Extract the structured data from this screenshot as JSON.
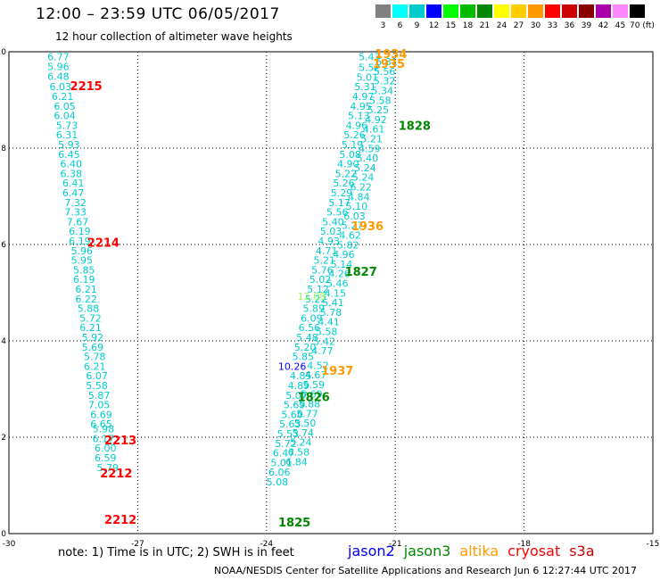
{
  "header": {
    "title": "12:00 – 23:59 UTC 06/05/2017",
    "subtitle": "12 hour collection of altimeter wave heights"
  },
  "colorbar": {
    "labels": [
      "3",
      "6",
      "9",
      "12",
      "15",
      "18",
      "21",
      "24",
      "27",
      "30",
      "33",
      "36",
      "39",
      "42",
      "45",
      "70 (ft)"
    ],
    "colors": [
      "#808080",
      "#00ffff",
      "#00cccc",
      "#0000ff",
      "#00ff00",
      "#00bb00",
      "#008800",
      "#ffff00",
      "#ffcc00",
      "#ff9900",
      "#ff0000",
      "#cc0000",
      "#880000",
      "#aa00aa",
      "#ff88ff",
      "#000000"
    ]
  },
  "note": "note:  1) Time is in UTC;  2) SWH is in feet",
  "satellites": [
    {
      "name": "jason2",
      "color": "#0000ff"
    },
    {
      "name": "jason3",
      "color": "#008800"
    },
    {
      "name": "altika",
      "color": "#ff9900"
    },
    {
      "name": "cryosat",
      "color": "#ff0000"
    },
    {
      "name": "s3a",
      "color": "#cc0000"
    }
  ],
  "footer": "NOAA/NESDIS Center for Satellite Applications and Research    Jun  6 12:27:44 UTC 2017",
  "chart_data": {
    "type": "scatter",
    "xlim": [
      -30,
      -15
    ],
    "ylim": [
      0,
      10
    ],
    "x_ticks": [
      "-30",
      "-27",
      "-24",
      "-21",
      "-18",
      "-15"
    ],
    "y_ticks": [
      "0",
      "2",
      "4",
      "6",
      "8",
      "10"
    ],
    "grid": true,
    "series": [
      {
        "name": "left track",
        "color": "#00cccc",
        "points": [
          {
            "x": -28.85,
            "y": 9.82,
            "label": "6.77"
          },
          {
            "x": -28.85,
            "y": 9.62,
            "label": "5.96"
          },
          {
            "x": -28.85,
            "y": 9.42,
            "label": "6.48"
          },
          {
            "x": -28.8,
            "y": 9.2,
            "label": "6.03"
          },
          {
            "x": -28.75,
            "y": 9.0,
            "label": "6.21"
          },
          {
            "x": -28.7,
            "y": 8.8,
            "label": "6.05"
          },
          {
            "x": -28.7,
            "y": 8.6,
            "label": "6.04"
          },
          {
            "x": -28.65,
            "y": 8.4,
            "label": "5.73"
          },
          {
            "x": -28.65,
            "y": 8.2,
            "label": "6.31"
          },
          {
            "x": -28.6,
            "y": 8.0,
            "label": "5.93"
          },
          {
            "x": -28.6,
            "y": 7.8,
            "label": "6.45"
          },
          {
            "x": -28.55,
            "y": 7.6,
            "label": "6.40"
          },
          {
            "x": -28.55,
            "y": 7.4,
            "label": "6.38"
          },
          {
            "x": -28.5,
            "y": 7.2,
            "label": "6.41"
          },
          {
            "x": -28.5,
            "y": 7.0,
            "label": "6.47"
          },
          {
            "x": -28.45,
            "y": 6.8,
            "label": "7.32"
          },
          {
            "x": -28.45,
            "y": 6.6,
            "label": "7.33"
          },
          {
            "x": -28.4,
            "y": 6.4,
            "label": "7.67"
          },
          {
            "x": -28.35,
            "y": 6.2,
            "label": "6.19"
          },
          {
            "x": -28.35,
            "y": 6.0,
            "label": "6.19"
          },
          {
            "x": -28.3,
            "y": 5.8,
            "label": "5.96"
          },
          {
            "x": -28.3,
            "y": 5.6,
            "label": "5.95"
          },
          {
            "x": -28.25,
            "y": 5.4,
            "label": "5.85"
          },
          {
            "x": -28.25,
            "y": 5.2,
            "label": "6.19"
          },
          {
            "x": -28.2,
            "y": 5.0,
            "label": "6.21"
          },
          {
            "x": -28.2,
            "y": 4.8,
            "label": "6.22"
          },
          {
            "x": -28.15,
            "y": 4.6,
            "label": "5.88"
          },
          {
            "x": -28.1,
            "y": 4.4,
            "label": "5.72"
          },
          {
            "x": -28.1,
            "y": 4.2,
            "label": "6.21"
          },
          {
            "x": -28.05,
            "y": 4.0,
            "label": "5.92"
          },
          {
            "x": -28.05,
            "y": 3.8,
            "label": "5.69"
          },
          {
            "x": -28.0,
            "y": 3.6,
            "label": "5.78"
          },
          {
            "x": -28.0,
            "y": 3.4,
            "label": "6.21"
          },
          {
            "x": -27.95,
            "y": 3.2,
            "label": "6.07"
          },
          {
            "x": -27.95,
            "y": 3.0,
            "label": "5.58"
          },
          {
            "x": -27.9,
            "y": 2.8,
            "label": "5.87"
          },
          {
            "x": -27.9,
            "y": 2.6,
            "label": "7.05"
          },
          {
            "x": -27.85,
            "y": 2.4,
            "label": "6.69"
          },
          {
            "x": -27.85,
            "y": 2.2,
            "label": "6.65"
          },
          {
            "x": -27.8,
            "y": 2.1,
            "label": "5.98"
          },
          {
            "x": -27.8,
            "y": 1.9,
            "label": "6.17"
          },
          {
            "x": -27.75,
            "y": 1.7,
            "label": "6.00"
          },
          {
            "x": -27.75,
            "y": 1.5,
            "label": "6.59"
          },
          {
            "x": -27.7,
            "y": 1.3,
            "label": "5.79"
          }
        ]
      },
      {
        "name": "right track",
        "color": "#00cccc",
        "points": [
          {
            "x": -21.6,
            "y": 9.82,
            "label": "5.43"
          },
          {
            "x": -21.6,
            "y": 9.6,
            "label": "5.52"
          },
          {
            "x": -21.65,
            "y": 9.4,
            "label": "5.01"
          },
          {
            "x": -21.7,
            "y": 9.2,
            "label": "5.31"
          },
          {
            "x": -21.75,
            "y": 9.0,
            "label": "4.97"
          },
          {
            "x": -21.8,
            "y": 8.8,
            "label": "4.95"
          },
          {
            "x": -21.85,
            "y": 8.6,
            "label": "5.13"
          },
          {
            "x": -21.9,
            "y": 8.4,
            "label": "4.96"
          },
          {
            "x": -21.95,
            "y": 8.2,
            "label": "5.26"
          },
          {
            "x": -22.0,
            "y": 8.0,
            "label": "5.19"
          },
          {
            "x": -22.05,
            "y": 7.8,
            "label": "5.08"
          },
          {
            "x": -22.1,
            "y": 7.6,
            "label": "4.90"
          },
          {
            "x": -22.15,
            "y": 7.4,
            "label": "5.22"
          },
          {
            "x": -22.2,
            "y": 7.2,
            "label": "5.26"
          },
          {
            "x": -22.25,
            "y": 7.0,
            "label": "5.29"
          },
          {
            "x": -22.3,
            "y": 6.8,
            "label": "5.17"
          },
          {
            "x": -22.35,
            "y": 6.6,
            "label": "5.56"
          },
          {
            "x": -22.45,
            "y": 6.4,
            "label": "5.40"
          },
          {
            "x": -22.5,
            "y": 6.2,
            "label": "5.03"
          },
          {
            "x": -22.55,
            "y": 6.0,
            "label": "4.93"
          },
          {
            "x": -22.6,
            "y": 5.8,
            "label": "4.71"
          },
          {
            "x": -22.65,
            "y": 5.6,
            "label": "5.21"
          },
          {
            "x": -22.7,
            "y": 5.4,
            "label": "5.76"
          },
          {
            "x": -22.75,
            "y": 5.2,
            "label": "5.02"
          },
          {
            "x": -22.8,
            "y": 5.0,
            "label": "5.12"
          },
          {
            "x": -22.85,
            "y": 4.8,
            "label": "5.22"
          },
          {
            "x": -22.9,
            "y": 4.6,
            "label": "5.89"
          },
          {
            "x": -22.95,
            "y": 4.4,
            "label": "6.09"
          },
          {
            "x": -23.0,
            "y": 4.2,
            "label": "6.56"
          },
          {
            "x": -23.05,
            "y": 4.0,
            "label": "5.48"
          },
          {
            "x": -23.1,
            "y": 3.8,
            "label": "5.20"
          },
          {
            "x": -23.15,
            "y": 3.6,
            "label": "5.85"
          },
          {
            "x": -23.2,
            "y": 3.2,
            "label": "4.85"
          },
          {
            "x": -23.25,
            "y": 3.0,
            "label": "4.89"
          },
          {
            "x": -23.3,
            "y": 2.8,
            "label": "5.07"
          },
          {
            "x": -23.35,
            "y": 2.6,
            "label": "5.69"
          },
          {
            "x": -23.4,
            "y": 2.4,
            "label": "5.60"
          },
          {
            "x": -23.45,
            "y": 2.2,
            "label": "5.63"
          },
          {
            "x": -23.5,
            "y": 2.0,
            "label": "5.53"
          },
          {
            "x": -23.55,
            "y": 1.8,
            "label": "5.72"
          },
          {
            "x": -23.6,
            "y": 1.6,
            "label": "6.47"
          },
          {
            "x": -23.65,
            "y": 1.4,
            "label": "5.01"
          },
          {
            "x": -23.7,
            "y": 1.2,
            "label": "6.06"
          },
          {
            "x": -23.75,
            "y": 1.0,
            "label": "5.08"
          }
        ]
      },
      {
        "name": "right track b",
        "color": "#00cccc",
        "points": [
          {
            "x": -21.2,
            "y": 9.72,
            "label": "5.31"
          },
          {
            "x": -21.25,
            "y": 9.52,
            "label": "5.56"
          },
          {
            "x": -21.25,
            "y": 9.32,
            "label": "5.32"
          },
          {
            "x": -21.3,
            "y": 9.12,
            "label": "5.34"
          },
          {
            "x": -21.35,
            "y": 8.92,
            "label": "5.58"
          },
          {
            "x": -21.4,
            "y": 8.72,
            "label": "5.25"
          },
          {
            "x": -21.45,
            "y": 8.52,
            "label": "4.92"
          },
          {
            "x": -21.5,
            "y": 8.32,
            "label": "4.61"
          },
          {
            "x": -21.55,
            "y": 8.12,
            "label": "5.21"
          },
          {
            "x": -21.6,
            "y": 7.92,
            "label": "4.59"
          },
          {
            "x": -21.65,
            "y": 7.72,
            "label": "5.40"
          },
          {
            "x": -21.7,
            "y": 7.52,
            "label": "5.24"
          },
          {
            "x": -21.75,
            "y": 7.32,
            "label": "5.24"
          },
          {
            "x": -21.8,
            "y": 7.12,
            "label": "6.22"
          },
          {
            "x": -21.85,
            "y": 6.92,
            "label": "4.84"
          },
          {
            "x": -21.9,
            "y": 6.72,
            "label": "5.10"
          },
          {
            "x": -21.95,
            "y": 6.52,
            "label": "6.03"
          },
          {
            "x": -22.0,
            "y": 6.32,
            "label": "5.27"
          },
          {
            "x": -22.05,
            "y": 6.12,
            "label": "4.62"
          },
          {
            "x": -22.1,
            "y": 5.92,
            "label": "5.82"
          },
          {
            "x": -22.2,
            "y": 5.72,
            "label": "4.96"
          },
          {
            "x": -22.25,
            "y": 5.52,
            "label": "5.14"
          },
          {
            "x": -22.3,
            "y": 5.32,
            "label": "4.26"
          },
          {
            "x": -22.35,
            "y": 5.12,
            "label": "5.46"
          },
          {
            "x": -22.4,
            "y": 4.92,
            "label": "4.15"
          },
          {
            "x": -22.45,
            "y": 4.72,
            "label": "5.41"
          },
          {
            "x": -22.5,
            "y": 4.52,
            "label": "5.78"
          },
          {
            "x": -22.55,
            "y": 4.32,
            "label": "4.41"
          },
          {
            "x": -22.6,
            "y": 4.12,
            "label": "5.58"
          },
          {
            "x": -22.65,
            "y": 3.92,
            "label": "5.42"
          },
          {
            "x": -22.7,
            "y": 3.72,
            "label": "4.77"
          },
          {
            "x": -22.8,
            "y": 3.42,
            "label": "4.52"
          },
          {
            "x": -22.85,
            "y": 3.22,
            "label": "4.67"
          },
          {
            "x": -22.9,
            "y": 3.02,
            "label": "5.59"
          },
          {
            "x": -22.95,
            "y": 2.82,
            "label": "5.69"
          },
          {
            "x": -23.0,
            "y": 2.62,
            "label": "5.88"
          },
          {
            "x": -23.05,
            "y": 2.42,
            "label": "5.77"
          },
          {
            "x": -23.1,
            "y": 2.22,
            "label": "5.50"
          },
          {
            "x": -23.15,
            "y": 2.02,
            "label": "5.74"
          },
          {
            "x": -23.2,
            "y": 1.82,
            "label": "5.24"
          },
          {
            "x": -23.25,
            "y": 1.62,
            "label": "6.58"
          },
          {
            "x": -23.3,
            "y": 1.42,
            "label": "6.84"
          }
        ]
      }
    ],
    "special_points": [
      {
        "x": -22.95,
        "y": 4.85,
        "label": "12.08",
        "color": "#99ff66"
      },
      {
        "x": -23.4,
        "y": 3.4,
        "label": "10.26",
        "color": "#0000ff"
      }
    ],
    "pass_labels": [
      {
        "x": -21.1,
        "y": 9.87,
        "label": "1934",
        "color": "#ff9900"
      },
      {
        "x": -21.15,
        "y": 9.67,
        "label": "1935",
        "color": "#ff9900"
      },
      {
        "x": -20.55,
        "y": 8.38,
        "label": "1828",
        "color": "#008800"
      },
      {
        "x": -21.65,
        "y": 6.3,
        "label": "1936",
        "color": "#ff9900"
      },
      {
        "x": -21.8,
        "y": 5.35,
        "label": "1827",
        "color": "#008800"
      },
      {
        "x": -22.35,
        "y": 3.3,
        "label": "1937",
        "color": "#ff9900"
      },
      {
        "x": -22.9,
        "y": 2.75,
        "label": "1826",
        "color": "#008800"
      },
      {
        "x": -23.35,
        "y": 0.15,
        "label": "1825",
        "color": "#008800"
      },
      {
        "x": -28.2,
        "y": 9.2,
        "label": "2215",
        "color": "#ff0000"
      },
      {
        "x": -27.8,
        "y": 5.95,
        "label": "2214",
        "color": "#ff0000"
      },
      {
        "x": -27.4,
        "y": 1.85,
        "label": "2213",
        "color": "#ff0000"
      },
      {
        "x": -27.5,
        "y": 1.17,
        "label": "2212",
        "color": "#ff0000"
      },
      {
        "x": -27.4,
        "y": 0.2,
        "label": "2212",
        "color": "#ff0000"
      }
    ]
  }
}
